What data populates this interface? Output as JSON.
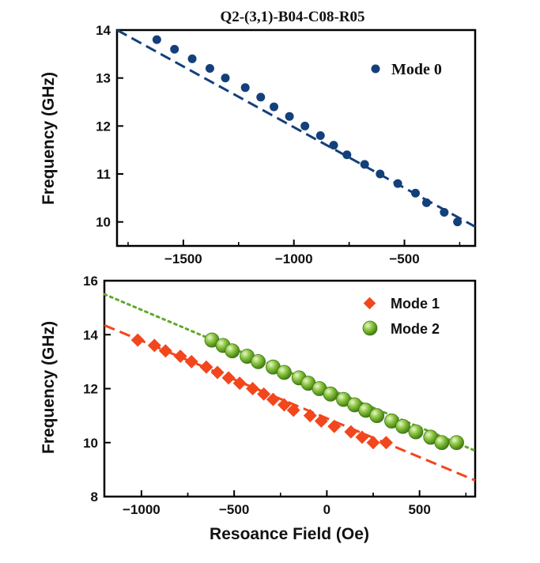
{
  "title": "Q2-(3,1)-B04-C08-R05",
  "colors": {
    "mode0": "#13407a",
    "mode1": "#f2461d",
    "mode2": "#6aa82a",
    "mode2_fit": "#63a82a"
  },
  "chart_data": [
    {
      "type": "scatter",
      "ylabel": "Frequency (GHz)",
      "xlabel": "",
      "xlim": [
        -1800,
        -180
      ],
      "ylim": [
        9.5,
        14
      ],
      "xticks": [
        -1500,
        -1000,
        -500
      ],
      "xtick_labels": [
        "−1500",
        "−1000",
        "−500"
      ],
      "yticks": [
        10,
        11,
        12,
        13,
        14
      ],
      "legend_position": "top-right",
      "series": [
        {
          "name": "Mode 0",
          "marker": "circle",
          "x": [
            -1620,
            -1540,
            -1460,
            -1380,
            -1310,
            -1220,
            -1150,
            -1090,
            -1020,
            -950,
            -880,
            -820,
            -760,
            -680,
            -610,
            -530,
            -450,
            -400,
            -320,
            -260
          ],
          "y": [
            13.8,
            13.6,
            13.4,
            13.2,
            13.0,
            12.8,
            12.6,
            12.4,
            12.2,
            12.0,
            11.8,
            11.6,
            11.4,
            11.2,
            11.0,
            10.8,
            10.6,
            10.4,
            10.2,
            10.0
          ]
        }
      ],
      "fit_lines": [
        {
          "series": "Mode 0",
          "style": "dashed",
          "x": [
            -1800,
            -180
          ],
          "y": [
            14.0,
            9.9
          ]
        }
      ]
    },
    {
      "type": "scatter",
      "ylabel": "Frequency (GHz)",
      "xlabel": "Resoance Field (Oe)",
      "xlim": [
        -1200,
        800
      ],
      "ylim": [
        8,
        16
      ],
      "xticks": [
        -1000,
        -500,
        0,
        500
      ],
      "xtick_labels": [
        "−1000",
        "−500",
        "0",
        "500"
      ],
      "yticks": [
        8,
        10,
        12,
        14,
        16
      ],
      "legend_position": "top-right",
      "series": [
        {
          "name": "Mode 1",
          "marker": "diamond",
          "x": [
            -1020,
            -930,
            -870,
            -790,
            -730,
            -650,
            -590,
            -530,
            -470,
            -400,
            -340,
            -290,
            -230,
            -180,
            -90,
            -30,
            40,
            130,
            190,
            250,
            320
          ],
          "y": [
            13.8,
            13.6,
            13.4,
            13.2,
            13.0,
            12.8,
            12.6,
            12.4,
            12.2,
            12.0,
            11.8,
            11.6,
            11.4,
            11.2,
            11.0,
            10.8,
            10.6,
            10.4,
            10.2,
            10.0,
            10.0
          ]
        },
        {
          "name": "Mode 2",
          "marker": "sphere",
          "x": [
            -620,
            -560,
            -510,
            -430,
            -370,
            -290,
            -230,
            -150,
            -100,
            -40,
            20,
            90,
            150,
            210,
            270,
            350,
            410,
            480,
            560,
            620,
            700
          ],
          "y": [
            13.8,
            13.6,
            13.4,
            13.2,
            13.0,
            12.8,
            12.6,
            12.4,
            12.2,
            12.0,
            11.8,
            11.6,
            11.4,
            11.2,
            11.0,
            10.8,
            10.6,
            10.4,
            10.2,
            10.0,
            10.0
          ]
        }
      ],
      "fit_lines": [
        {
          "series": "Mode 1",
          "style": "dashed",
          "x": [
            -1200,
            800
          ],
          "y": [
            14.35,
            8.6
          ]
        },
        {
          "series": "Mode 2",
          "style": "dotted",
          "x": [
            -1200,
            800
          ],
          "y": [
            15.5,
            9.7
          ]
        }
      ]
    }
  ]
}
